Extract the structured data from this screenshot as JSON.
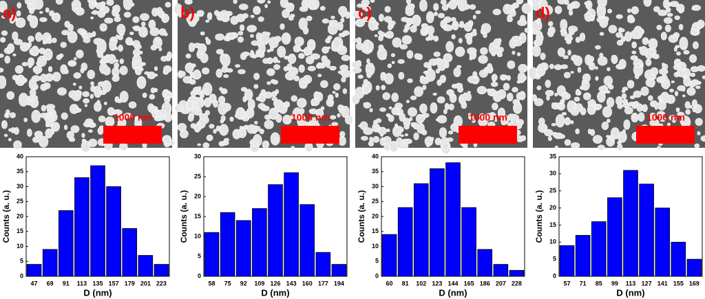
{
  "chart_data": [
    {
      "type": "bar",
      "panel_label": "a)",
      "scale_bar_label": "1000 nm",
      "xlabel": "D (nm)",
      "ylabel": "Counts (a. u.)",
      "categories": [
        "47",
        "69",
        "91",
        "113",
        "135",
        "157",
        "179",
        "201",
        "223"
      ],
      "values": [
        4,
        9,
        22,
        33,
        37,
        30,
        16,
        7,
        4
      ],
      "color": "#0000ff",
      "ylim": [
        0,
        40
      ],
      "yticks": [
        0,
        5,
        10,
        15,
        20,
        25,
        30,
        35,
        40
      ]
    },
    {
      "type": "bar",
      "panel_label": "b)",
      "scale_bar_label": "1000 nm",
      "xlabel": "D (nm)",
      "ylabel": "Counts (a. u.)",
      "categories": [
        "58",
        "75",
        "92",
        "109",
        "126",
        "143",
        "160",
        "177",
        "194"
      ],
      "values": [
        11,
        16,
        14,
        17,
        23,
        26,
        18,
        6,
        3
      ],
      "color": "#0000ff",
      "ylim": [
        0,
        30
      ],
      "yticks": [
        0,
        5,
        10,
        15,
        20,
        25,
        30
      ]
    },
    {
      "type": "bar",
      "panel_label": "c)",
      "scale_bar_label": "1000 nm",
      "xlabel": "D (nm)",
      "ylabel": "Counts (a. u.)",
      "categories": [
        "60",
        "81",
        "102",
        "123",
        "144",
        "165",
        "186",
        "207",
        "228"
      ],
      "values": [
        14,
        23,
        31,
        36,
        38,
        23,
        9,
        4,
        2
      ],
      "color": "#0000ff",
      "ylim": [
        0,
        40
      ],
      "yticks": [
        0,
        5,
        10,
        15,
        20,
        25,
        30,
        35,
        40
      ]
    },
    {
      "type": "bar",
      "panel_label": "d)",
      "scale_bar_label": "1000 nm",
      "xlabel": "D (nm)",
      "ylabel": "Counts (a. u.)",
      "categories": [
        "57",
        "71",
        "85",
        "99",
        "113",
        "127",
        "141",
        "155",
        "169"
      ],
      "values": [
        9,
        12,
        16,
        23,
        31,
        27,
        20,
        10,
        5
      ],
      "color": "#0000ff",
      "ylim": [
        0,
        35
      ],
      "yticks": [
        0,
        5,
        10,
        15,
        20,
        25,
        30,
        35
      ]
    }
  ]
}
